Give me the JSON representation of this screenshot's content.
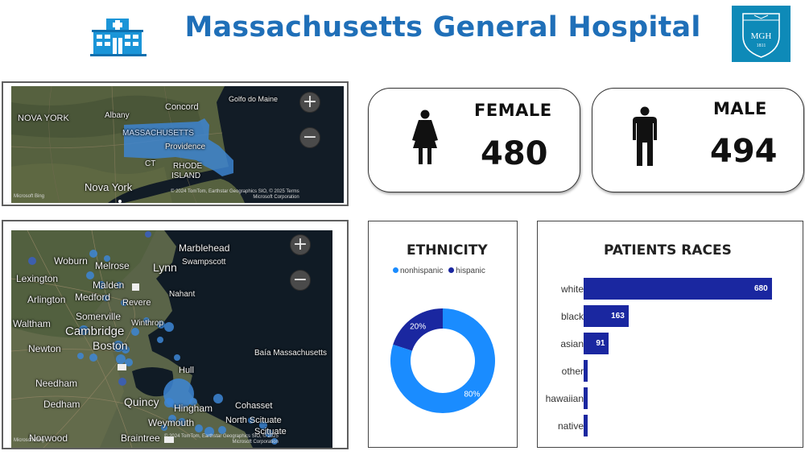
{
  "header": {
    "title": "Massachusetts General Hospital",
    "logo_text": "MGH",
    "logo_year": "1811",
    "brand_color": "#1f6fb8",
    "logo_color": "#0e8ab8"
  },
  "state_map": {
    "labels": {
      "nova_york_upper": "NOVA YORK",
      "albany": "Albany",
      "concord": "Concord",
      "golfo": "Golfo do Maine",
      "massachusetts": "MASSACHUSETTS",
      "providence": "Providence",
      "ct": "CT",
      "rhode_island_1": "RHODE",
      "rhode_island_2": "ISLAND",
      "nova_york": "Nova York"
    },
    "copyright_1": "© 2024 TomTom, Earthstar Geographics SIO, © 2025",
    "copyright_2": "Microsoft Corporation",
    "terms": "Terms",
    "bing": "Microsoft Bing",
    "zoom_in": "+",
    "zoom_out": "−"
  },
  "city_map": {
    "labels": {
      "marblehead": "Marblehead",
      "woburn": "Woburn",
      "swampscott": "Swampscott",
      "melrose": "Melrose",
      "lynn": "Lynn",
      "lexington": "Lexington",
      "malden": "Malden",
      "nahant": "Nahant",
      "arlington": "Arlington",
      "medford": "Medford",
      "revere": "Revere",
      "somerville": "Somerville",
      "waltham": "Waltham",
      "cambridge": "Cambridge",
      "winthrop": "Winthrop",
      "boston": "Boston",
      "newton": "Newton",
      "baia": "Baía Massachusetts",
      "hull": "Hull",
      "needham": "Needham",
      "dedham": "Dedham",
      "quincy": "Quincy",
      "hingham": "Hingham",
      "cohasset": "Cohasset",
      "weymouth": "Weymouth",
      "north_scituate": "North Scituate",
      "scituate": "Scituate",
      "norwood": "Norwood",
      "braintree": "Braintree"
    },
    "copyright_1": "© 2024 TomTom, Earthstar Geographics SIO, © 2025",
    "copyright_2": "Microsoft Corporation",
    "bing": "Microsoft Bing",
    "zoom_in": "+",
    "zoom_out": "−"
  },
  "gender": {
    "female": {
      "label": "FEMALE",
      "count": "480"
    },
    "male": {
      "label": "MALE",
      "count": "494"
    }
  },
  "ethnicity": {
    "title": "ETHNICITY",
    "legend": [
      {
        "label": "nonhispanic",
        "color": "#1a8cff"
      },
      {
        "label": "hispanic",
        "color": "#1a27a0"
      }
    ]
  },
  "races": {
    "title": "PATIENTS RACES",
    "bar_color": "#1a27a0"
  },
  "chart_data": [
    {
      "type": "pie",
      "title": "ETHNICITY",
      "categories": [
        "nonhispanic",
        "hispanic"
      ],
      "values": [
        80,
        20
      ],
      "data_labels": [
        "80%",
        "20%"
      ],
      "colors": [
        "#1a8cff",
        "#1a27a0"
      ],
      "legend_position": "top"
    },
    {
      "type": "bar",
      "orientation": "horizontal",
      "title": "PATIENTS RACES",
      "categories": [
        "white",
        "black",
        "asian",
        "other",
        "hawaiian",
        "native"
      ],
      "values": [
        680,
        163,
        91,
        5,
        3,
        3
      ],
      "data_labels": [
        "680",
        "163",
        "91",
        "",
        "",
        ""
      ],
      "xlim": [
        0,
        680
      ]
    }
  ]
}
